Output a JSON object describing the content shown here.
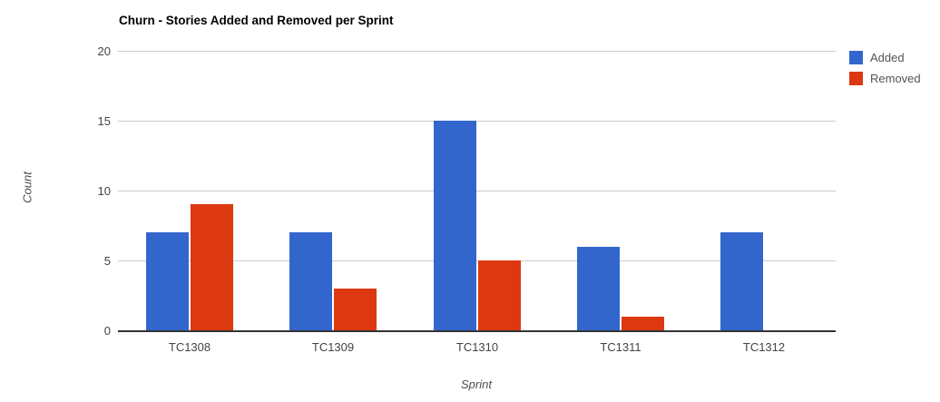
{
  "chart_data": {
    "type": "bar",
    "title": "Churn - Stories Added and Removed per Sprint",
    "xlabel": "Sprint",
    "ylabel": "Count",
    "categories": [
      "TC1308",
      "TC1309",
      "TC1310",
      "TC1311",
      "TC1312"
    ],
    "series": [
      {
        "name": "Added",
        "color": "#3366CC",
        "values": [
          7,
          7,
          15,
          6,
          7
        ]
      },
      {
        "name": "Removed",
        "color": "#DC3912",
        "values": [
          9,
          3,
          5,
          1,
          0
        ]
      }
    ],
    "ylim": [
      0,
      20
    ],
    "yticks": [
      0,
      5,
      10,
      15,
      20
    ],
    "grid": true,
    "legend_position": "right",
    "colors": {
      "gridline": "#cccccc",
      "baseline": "#333333",
      "tick_text": "#444444",
      "legend_text": "#545454",
      "title_text": "#000000"
    }
  }
}
